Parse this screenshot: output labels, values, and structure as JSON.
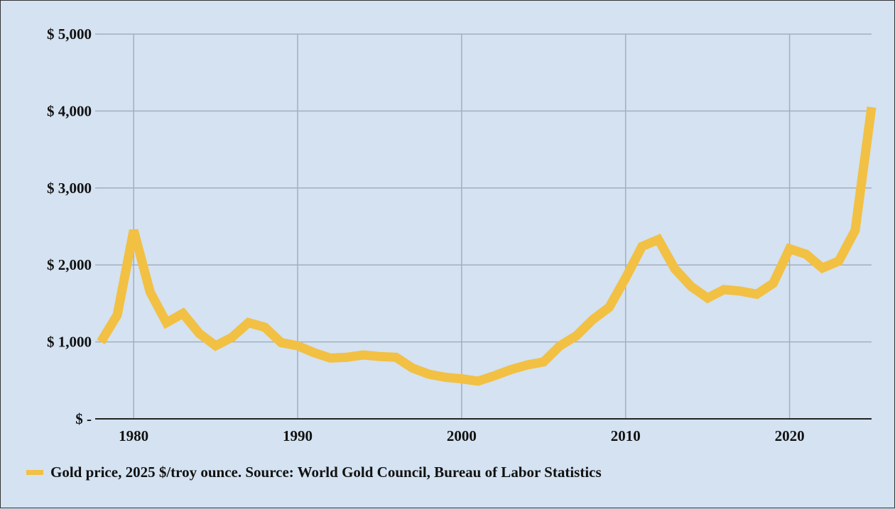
{
  "chart_data": {
    "type": "line",
    "title": "",
    "xlabel": "",
    "ylabel": "",
    "xlim": [
      1978,
      2025
    ],
    "ylim": [
      0,
      5000
    ],
    "grid": true,
    "legend_placement": "bottom-left",
    "x_ticks": [
      1980,
      1990,
      2000,
      2010,
      2020
    ],
    "x_tick_labels": [
      "1980",
      "1990",
      "2000",
      "2010",
      "2020"
    ],
    "y_ticks": [
      0,
      1000,
      2000,
      3000,
      4000,
      5000
    ],
    "y_tick_labels": [
      "$ -",
      "$ 1,000",
      "$ 2,000",
      "$ 3,000",
      "$ 4,000",
      "$ 5,000"
    ],
    "colors": {
      "line": "#f2c043",
      "background": "#d4e2f1",
      "grid": "#a3afbd"
    },
    "series": [
      {
        "name": "Gold price, 2025 $/troy ounce. Source: World Gold Council, Bureau of Labor Statistics",
        "x": [
          1978,
          1979,
          1980,
          1981,
          1982,
          1983,
          1984,
          1985,
          1986,
          1987,
          1988,
          1989,
          1990,
          1991,
          1992,
          1993,
          1994,
          1995,
          1996,
          1997,
          1998,
          1999,
          2000,
          2001,
          2002,
          2003,
          2004,
          2005,
          2006,
          2007,
          2008,
          2009,
          2010,
          2011,
          2012,
          2013,
          2014,
          2015,
          2016,
          2017,
          2018,
          2019,
          2020,
          2021,
          2022,
          2023,
          2024,
          2025
        ],
        "values": [
          1000,
          1350,
          2450,
          1650,
          1250,
          1370,
          1110,
          950,
          1060,
          1250,
          1190,
          990,
          950,
          860,
          790,
          800,
          830,
          810,
          800,
          660,
          580,
          540,
          520,
          490,
          560,
          640,
          700,
          740,
          950,
          1080,
          1290,
          1450,
          1830,
          2240,
          2330,
          1950,
          1720,
          1570,
          1680,
          1660,
          1620,
          1760,
          2210,
          2140,
          1960,
          2050,
          2450,
          4050
        ]
      }
    ]
  }
}
